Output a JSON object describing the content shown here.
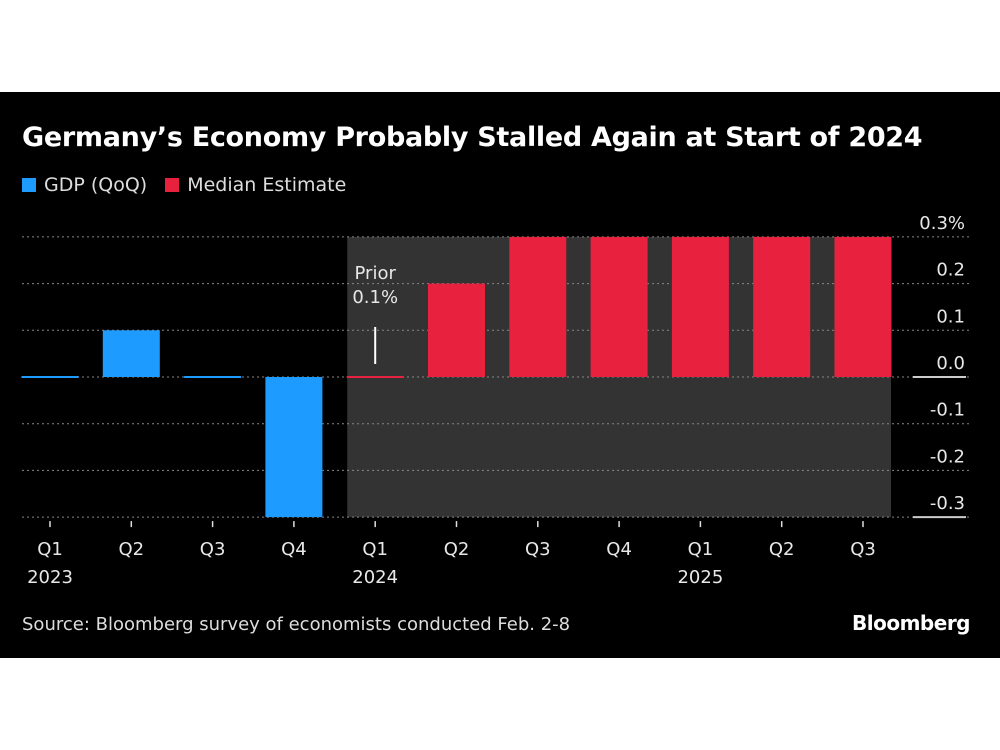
{
  "colors": {
    "gdp": "#1e9bff",
    "estimate": "#e8213f",
    "shade": "#333333"
  },
  "chart_data": {
    "type": "bar",
    "title": "Germany’s Economy Probably Stalled Again at Start of 2024",
    "categories": [
      "Q1 2023",
      "Q2 2023",
      "Q3 2023",
      "Q4 2023",
      "Q1 2024",
      "Q2 2024",
      "Q3 2024",
      "Q4 2024",
      "Q1 2025",
      "Q2 2025",
      "Q3 2025"
    ],
    "tick_labels": [
      [
        "Q1",
        "2023"
      ],
      [
        "Q2",
        ""
      ],
      [
        "Q3",
        ""
      ],
      [
        "Q4",
        ""
      ],
      [
        "Q1",
        "2024"
      ],
      [
        "Q2",
        ""
      ],
      [
        "Q3",
        ""
      ],
      [
        "Q4",
        ""
      ],
      [
        "Q1",
        "2025"
      ],
      [
        "Q2",
        ""
      ],
      [
        "Q3",
        ""
      ]
    ],
    "series": [
      {
        "name": "GDP (QoQ)",
        "values": [
          0.0,
          0.1,
          0.0,
          -0.3,
          null,
          null,
          null,
          null,
          null,
          null,
          null
        ]
      },
      {
        "name": "Median Estimate",
        "values": [
          null,
          null,
          null,
          null,
          0.0,
          0.2,
          0.3,
          0.3,
          0.3,
          0.3,
          0.3
        ]
      }
    ],
    "ylim": [
      -0.3,
      0.3
    ],
    "yticks": [
      0.3,
      0.2,
      0.1,
      0.0,
      -0.1,
      -0.2,
      -0.3
    ],
    "ytick_labels": [
      "0.3%",
      "0.2",
      "0.1",
      "0.0",
      "-0.1",
      "-0.2",
      "-0.3"
    ],
    "grid": true,
    "legend": "top-left",
    "shaded_from": "Q1 2024",
    "annotation": {
      "category": "Q1 2024",
      "lines": [
        "Prior",
        "0.1%"
      ]
    }
  },
  "source": "Source: Bloomberg survey of economists conducted Feb. 2-8",
  "brand": "Bloomberg"
}
